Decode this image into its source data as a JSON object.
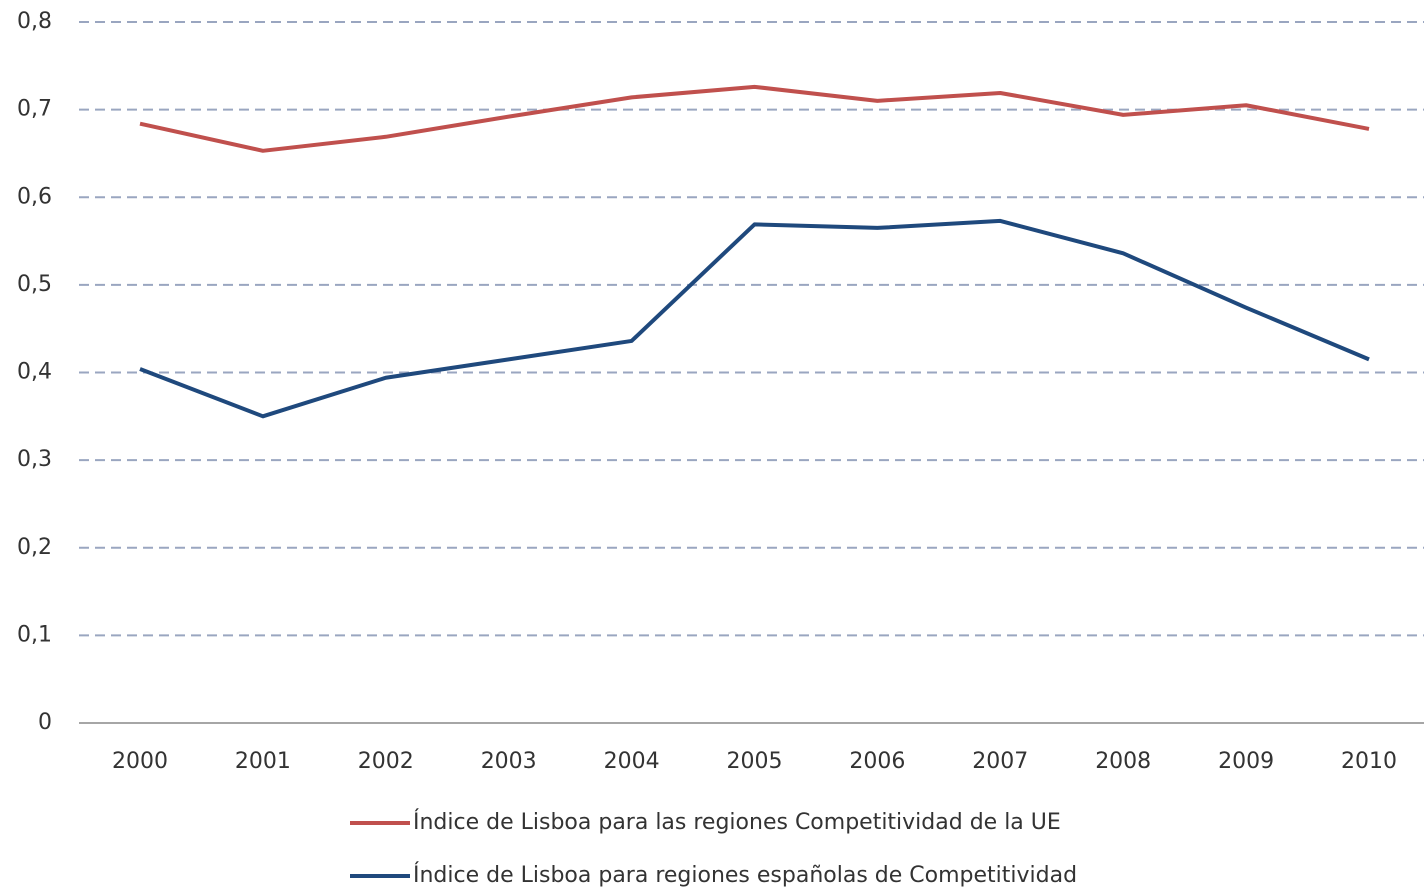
{
  "chart_data": {
    "type": "line",
    "categories": [
      "2000",
      "2001",
      "2002",
      "2003",
      "2004",
      "2005",
      "2006",
      "2007",
      "2008",
      "2009",
      "2010"
    ],
    "series": [
      {
        "name": "Índice de Lisboa para las regiones Competitividad de la UE",
        "color": "#c0504d",
        "values": [
          0.684,
          0.653,
          0.669,
          0.692,
          0.714,
          0.726,
          0.71,
          0.719,
          0.694,
          0.705,
          0.678
        ]
      },
      {
        "name": "Índice de Lisboa para regiones españolas de Competitividad",
        "color": "#1f497d",
        "values": [
          0.404,
          0.35,
          0.394,
          0.415,
          0.436,
          0.569,
          0.565,
          0.573,
          0.536,
          0.474,
          0.415
        ]
      }
    ],
    "ylim": [
      0,
      0.8
    ],
    "yticks": [
      0,
      {
        "value": 0.1,
        "label": "0,1"
      },
      {
        "value": 0.2,
        "label": "0,2"
      },
      {
        "value": 0.3,
        "label": "0,3"
      },
      {
        "value": 0.4,
        "label": "0,4"
      },
      {
        "value": 0.5,
        "label": "0,5"
      },
      {
        "value": 0.6,
        "label": "0,6"
      },
      {
        "value": 0.7,
        "label": "0,7"
      },
      {
        "value": 0.8,
        "label": "0,8"
      }
    ],
    "grid": true,
    "legend": "bottom"
  }
}
